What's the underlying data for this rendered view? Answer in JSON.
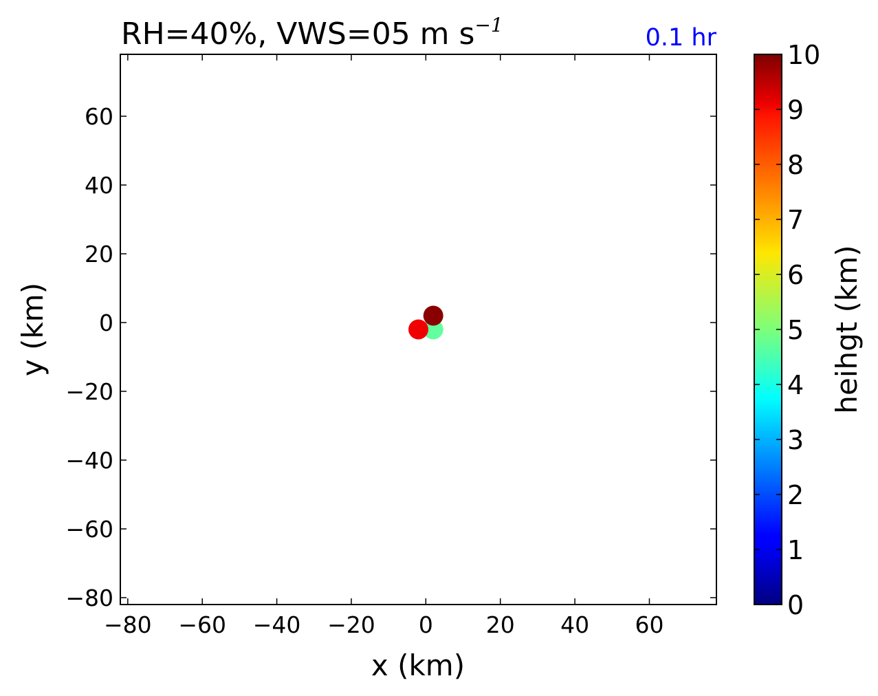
{
  "chart_data": {
    "type": "scatter",
    "title": "RH=40%, VWS=05 m s",
    "title_superscript": "−1",
    "annotation": "0.1 hr",
    "annotation_color": "#0000ff",
    "xlabel": "x (km)",
    "ylabel": "y (km)",
    "xlim": [
      -82,
      78
    ],
    "ylim": [
      -82,
      78
    ],
    "xticks": [
      -80,
      -60,
      -40,
      -20,
      0,
      20,
      40,
      60
    ],
    "yticks": [
      -80,
      -60,
      -40,
      -20,
      0,
      20,
      40,
      60
    ],
    "xtick_labels": [
      "−80",
      "−60",
      "−40",
      "−20",
      "0",
      "20",
      "40",
      "60"
    ],
    "ytick_labels": [
      "−80",
      "−60",
      "−40",
      "−20",
      "0",
      "20",
      "40",
      "60"
    ],
    "grid": false,
    "points": [
      {
        "x": 2,
        "y": -2,
        "height": 4.7
      },
      {
        "x": -2,
        "y": -2,
        "height": 8.9
      },
      {
        "x": 2,
        "y": 2,
        "height": 9.9
      }
    ],
    "colorbar": {
      "label": "heihgt (km)",
      "colormap": "jet",
      "range": [
        0,
        10
      ],
      "ticks": [
        0,
        1,
        2,
        3,
        4,
        5,
        6,
        7,
        8,
        9,
        10
      ],
      "tick_labels": [
        "0",
        "1",
        "2",
        "3",
        "4",
        "5",
        "6",
        "7",
        "8",
        "9",
        "10"
      ]
    }
  }
}
